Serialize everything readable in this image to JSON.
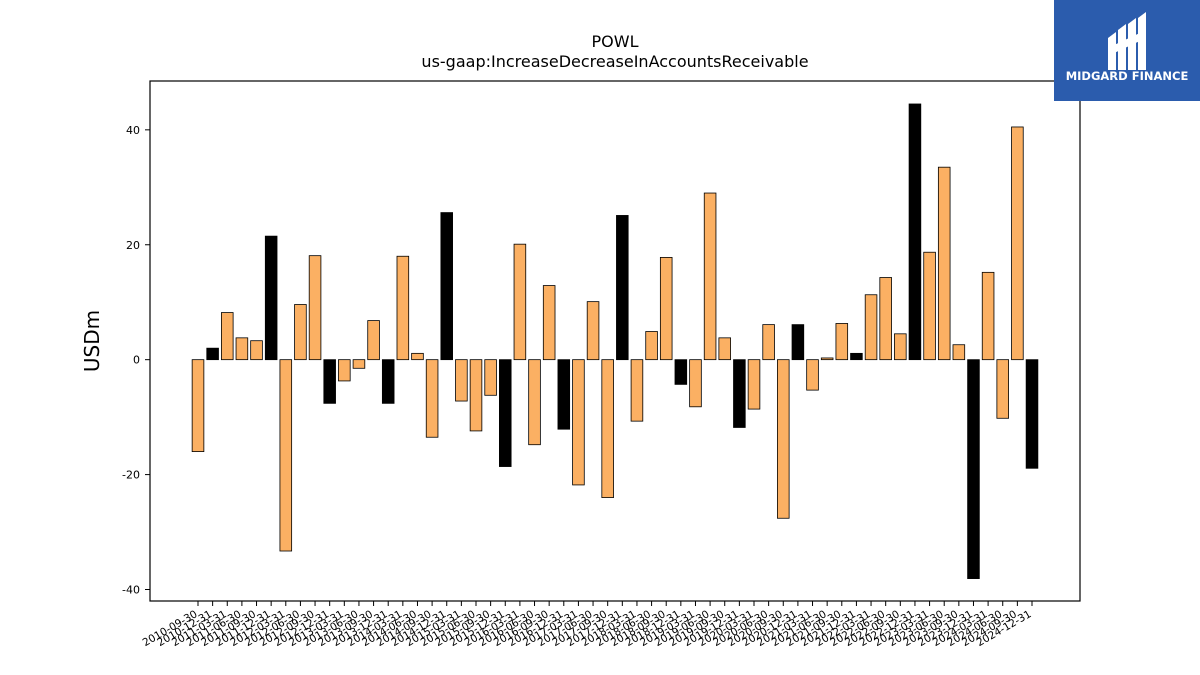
{
  "chart_data": {
    "type": "bar",
    "title": "POWL",
    "subtitle": "us-gaap:IncreaseDecreaseInAccountsReceivable",
    "ylabel": "USDm",
    "xlabel": "",
    "ylim": [
      -42,
      48.5
    ],
    "yticks": [
      -40,
      -20,
      0,
      20,
      40
    ],
    "grid": false,
    "categories": [
      "2010-09-30",
      "2010-12-31",
      "2011-03-31",
      "2011-06-30",
      "2011-09-30",
      "2011-12-31",
      "2012-03-31",
      "2012-06-30",
      "2012-09-30",
      "2012-12-31",
      "2013-03-31",
      "2013-06-30",
      "2013-09-30",
      "2013-12-31",
      "2014-03-31",
      "2014-06-30",
      "2014-09-30",
      "2014-12-31",
      "2015-03-31",
      "2015-06-30",
      "2015-09-30",
      "2015-12-31",
      "2016-03-31",
      "2016-06-30",
      "2016-09-30",
      "2016-12-31",
      "2017-03-31",
      "2017-06-30",
      "2017-09-30",
      "2017-12-31",
      "2018-03-31",
      "2018-06-30",
      "2018-09-30",
      "2018-12-31",
      "2019-03-31",
      "2019-06-30",
      "2019-09-30",
      "2019-12-31",
      "2020-03-31",
      "2020-06-30",
      "2020-09-30",
      "2020-12-31",
      "2021-03-31",
      "2021-06-30",
      "2021-09-30",
      "2021-12-31",
      "2022-03-31",
      "2022-06-30",
      "2022-09-30",
      "2022-12-31",
      "2023-03-31",
      "2023-06-30",
      "2023-09-30",
      "2023-12-31",
      "2024-03-31",
      "2024-06-30",
      "2024-09-30",
      "2024-12-31"
    ],
    "values": [
      -16.0,
      2.0,
      8.2,
      3.8,
      3.3,
      21.5,
      -33.3,
      9.6,
      18.1,
      -7.6,
      -3.7,
      -1.5,
      6.8,
      -7.6,
      18.0,
      1.1,
      -13.5,
      25.6,
      -7.2,
      -12.4,
      -6.2,
      -18.6,
      20.1,
      -14.8,
      12.9,
      -12.1,
      -21.8,
      10.1,
      -24.0,
      25.1,
      -10.7,
      4.9,
      17.8,
      -4.3,
      -8.2,
      29.0,
      3.8,
      -11.8,
      -8.6,
      6.1,
      -27.6,
      6.1,
      -5.3,
      0.3,
      6.3,
      1.1,
      11.3,
      14.3,
      4.5,
      44.5,
      18.7,
      33.5,
      2.6,
      -38.1,
      15.2,
      -10.2,
      40.5,
      -18.9
    ],
    "bar_colors": [
      "#fbb063",
      "#000000",
      "#fbb063",
      "#fbb063",
      "#fbb063",
      "#000000",
      "#fbb063",
      "#fbb063",
      "#fbb063",
      "#000000",
      "#fbb063",
      "#fbb063",
      "#fbb063",
      "#000000",
      "#fbb063",
      "#fbb063",
      "#fbb063",
      "#000000",
      "#fbb063",
      "#fbb063",
      "#fbb063",
      "#000000",
      "#fbb063",
      "#fbb063",
      "#fbb063",
      "#000000",
      "#fbb063",
      "#fbb063",
      "#fbb063",
      "#000000",
      "#fbb063",
      "#fbb063",
      "#fbb063",
      "#000000",
      "#fbb063",
      "#fbb063",
      "#fbb063",
      "#000000",
      "#fbb063",
      "#fbb063",
      "#fbb063",
      "#000000",
      "#fbb063",
      "#fbb063",
      "#fbb063",
      "#000000",
      "#fbb063",
      "#fbb063",
      "#fbb063",
      "#000000",
      "#fbb063",
      "#fbb063",
      "#fbb063",
      "#000000",
      "#fbb063",
      "#fbb063",
      "#fbb063",
      "#000000"
    ]
  },
  "logo": {
    "text": "MIDGARD FINANCE",
    "background": "#2b5cad",
    "icon": "midgard-logo-icon"
  }
}
